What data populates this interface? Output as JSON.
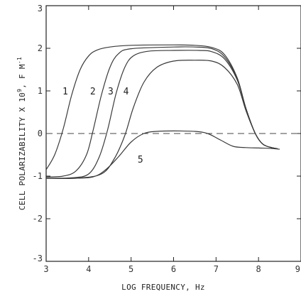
{
  "chart_data": {
    "type": "line",
    "title": "",
    "xlabel": "LOG  FREQUENCY, Hz",
    "ylabel_main": "CELL POLARIZABILITY X 10",
    "ylabel_exp": "9",
    "ylabel_tail": ", F M",
    "ylabel_exp2": "-1",
    "xlim": [
      3,
      9
    ],
    "ylim": [
      -3,
      3
    ],
    "x_ticks": [
      "3",
      "4",
      "5",
      "6",
      "7",
      "8",
      "9"
    ],
    "y_ticks": [
      "3",
      "2",
      "1",
      "0",
      "-1",
      "-2",
      "-3"
    ],
    "reference_line": {
      "y": 0,
      "style": "dashed"
    },
    "grid": false,
    "series": [
      {
        "name": "1",
        "label_at": [
          3.45,
          1.0
        ],
        "points": [
          [
            3.0,
            -0.85
          ],
          [
            3.2,
            -0.5
          ],
          [
            3.4,
            0.1
          ],
          [
            3.6,
            0.9
          ],
          [
            3.8,
            1.5
          ],
          [
            4.0,
            1.82
          ],
          [
            4.2,
            1.96
          ],
          [
            4.5,
            2.03
          ],
          [
            5.0,
            2.07
          ],
          [
            6.0,
            2.08
          ],
          [
            6.5,
            2.07
          ],
          [
            6.9,
            2.02
          ],
          [
            7.2,
            1.85
          ],
          [
            7.5,
            1.3
          ],
          [
            7.7,
            0.6
          ],
          [
            7.9,
            0.05
          ],
          [
            8.05,
            -0.2
          ],
          [
            8.2,
            -0.3
          ],
          [
            8.45,
            -0.36
          ]
        ]
      },
      {
        "name": "2",
        "label_at": [
          4.1,
          1.0
        ],
        "points": [
          [
            3.0,
            -1.02
          ],
          [
            3.4,
            -1.0
          ],
          [
            3.7,
            -0.88
          ],
          [
            3.95,
            -0.5
          ],
          [
            4.1,
            0.05
          ],
          [
            4.3,
            0.9
          ],
          [
            4.5,
            1.55
          ],
          [
            4.7,
            1.87
          ],
          [
            5.0,
            1.99
          ],
          [
            6.0,
            2.03
          ],
          [
            6.5,
            2.03
          ],
          [
            6.9,
            1.99
          ],
          [
            7.2,
            1.8
          ],
          [
            7.5,
            1.28
          ],
          [
            7.7,
            0.6
          ],
          [
            7.9,
            0.05
          ],
          [
            8.05,
            -0.2
          ],
          [
            8.2,
            -0.3
          ],
          [
            8.45,
            -0.36
          ]
        ]
      },
      {
        "name": "3",
        "label_at": [
          4.52,
          1.0
        ],
        "points": [
          [
            3.0,
            -1.05
          ],
          [
            3.6,
            -1.04
          ],
          [
            4.0,
            -0.95
          ],
          [
            4.25,
            -0.55
          ],
          [
            4.45,
            0.1
          ],
          [
            4.65,
            0.95
          ],
          [
            4.85,
            1.55
          ],
          [
            5.05,
            1.82
          ],
          [
            5.4,
            1.93
          ],
          [
            6.0,
            1.95
          ],
          [
            6.6,
            1.95
          ],
          [
            6.9,
            1.92
          ],
          [
            7.2,
            1.75
          ],
          [
            7.5,
            1.25
          ],
          [
            7.7,
            0.6
          ],
          [
            7.9,
            0.05
          ],
          [
            8.05,
            -0.2
          ],
          [
            8.2,
            -0.3
          ],
          [
            8.45,
            -0.36
          ]
        ]
      },
      {
        "name": "4",
        "label_at": [
          4.88,
          1.0
        ],
        "points": [
          [
            3.0,
            -1.05
          ],
          [
            3.7,
            -1.05
          ],
          [
            4.3,
            -0.95
          ],
          [
            4.6,
            -0.6
          ],
          [
            4.85,
            -0.05
          ],
          [
            5.05,
            0.6
          ],
          [
            5.3,
            1.2
          ],
          [
            5.6,
            1.55
          ],
          [
            6.0,
            1.7
          ],
          [
            6.5,
            1.72
          ],
          [
            6.9,
            1.7
          ],
          [
            7.2,
            1.55
          ],
          [
            7.5,
            1.15
          ],
          [
            7.7,
            0.55
          ],
          [
            7.9,
            0.05
          ],
          [
            8.05,
            -0.2
          ],
          [
            8.2,
            -0.3
          ],
          [
            8.45,
            -0.36
          ]
        ]
      },
      {
        "name": "5",
        "label_at": [
          5.22,
          -0.6
        ],
        "points": [
          [
            3.0,
            -1.05
          ],
          [
            3.6,
            -1.05
          ],
          [
            4.1,
            -1.02
          ],
          [
            4.4,
            -0.85
          ],
          [
            4.7,
            -0.55
          ],
          [
            5.0,
            -0.2
          ],
          [
            5.3,
            0.0
          ],
          [
            5.6,
            0.05
          ],
          [
            6.0,
            0.06
          ],
          [
            6.5,
            0.05
          ],
          [
            6.8,
            0.0
          ],
          [
            7.1,
            -0.15
          ],
          [
            7.4,
            -0.3
          ],
          [
            7.7,
            -0.33
          ],
          [
            8.0,
            -0.34
          ],
          [
            8.3,
            -0.35
          ],
          [
            8.5,
            -0.37
          ]
        ]
      }
    ]
  }
}
